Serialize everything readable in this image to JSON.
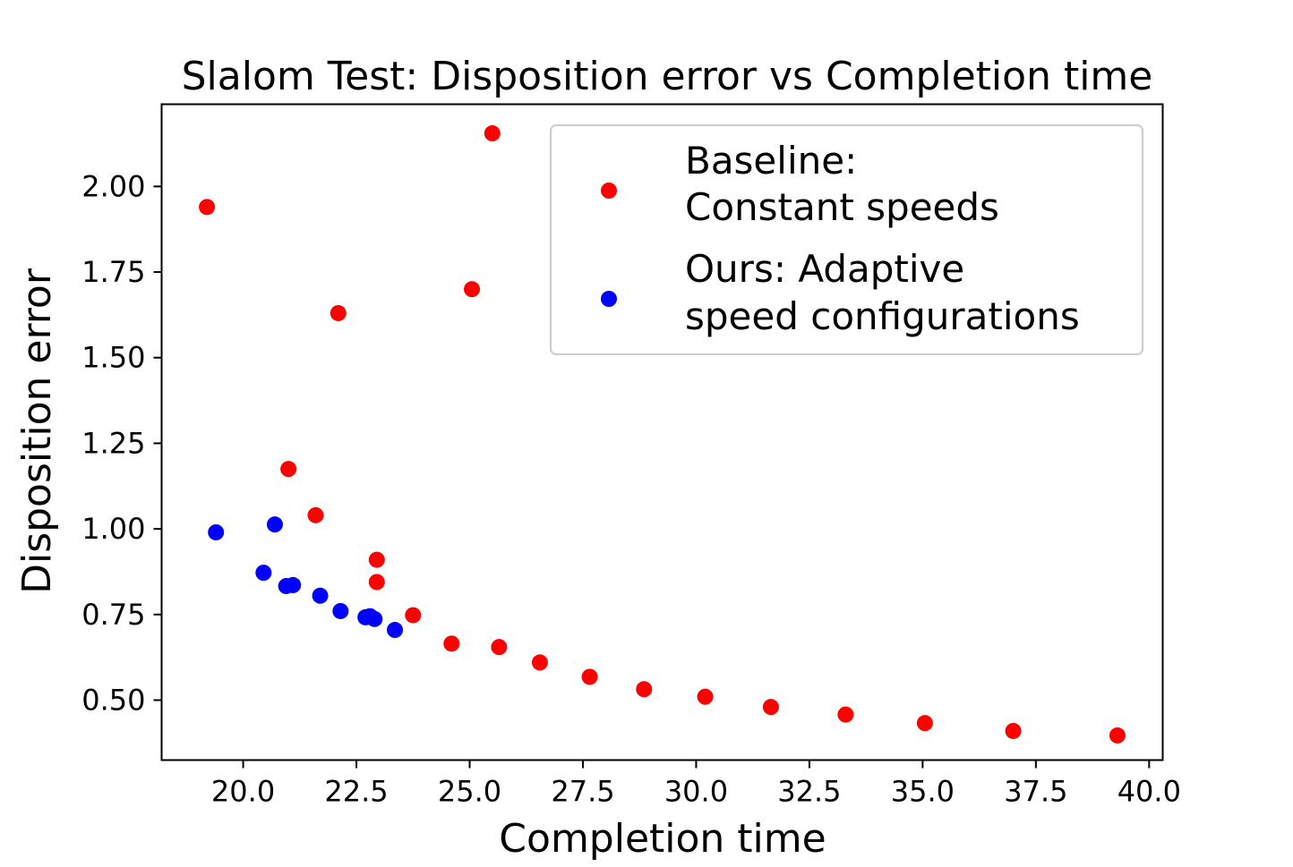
{
  "chart_data": {
    "type": "scatter",
    "title": "Slalom Test: Disposition error vs Completion time",
    "xlabel": "Completion time",
    "ylabel": "Disposition error",
    "xlim": [
      18.2,
      40.3
    ],
    "ylim": [
      0.325,
      2.24
    ],
    "xticks": [
      "20.0",
      "22.5",
      "25.0",
      "27.5",
      "30.0",
      "32.5",
      "35.0",
      "37.5",
      "40.0"
    ],
    "yticks": [
      "0.50",
      "0.75",
      "1.00",
      "1.25",
      "1.50",
      "1.75",
      "2.00"
    ],
    "grid": false,
    "legend_position": "top-right",
    "series": [
      {
        "name_lines": [
          "Baseline:",
          "Constant speeds"
        ],
        "color": "#ff0000",
        "points": [
          {
            "x": 19.2,
            "y": 1.94
          },
          {
            "x": 25.5,
            "y": 2.155
          },
          {
            "x": 25.05,
            "y": 1.7
          },
          {
            "x": 22.1,
            "y": 1.63
          },
          {
            "x": 21.0,
            "y": 1.175
          },
          {
            "x": 21.6,
            "y": 1.04
          },
          {
            "x": 22.95,
            "y": 0.91
          },
          {
            "x": 22.95,
            "y": 0.845
          },
          {
            "x": 23.75,
            "y": 0.748
          },
          {
            "x": 24.6,
            "y": 0.665
          },
          {
            "x": 25.65,
            "y": 0.655
          },
          {
            "x": 26.55,
            "y": 0.61
          },
          {
            "x": 27.65,
            "y": 0.568
          },
          {
            "x": 28.85,
            "y": 0.532
          },
          {
            "x": 30.2,
            "y": 0.51
          },
          {
            "x": 31.65,
            "y": 0.48
          },
          {
            "x": 33.3,
            "y": 0.458
          },
          {
            "x": 35.05,
            "y": 0.433
          },
          {
            "x": 37.0,
            "y": 0.41
          },
          {
            "x": 39.3,
            "y": 0.397
          }
        ]
      },
      {
        "name_lines": [
          "Ours: Adaptive",
          "speed configurations"
        ],
        "color": "#0000ff",
        "points": [
          {
            "x": 19.4,
            "y": 0.99
          },
          {
            "x": 20.7,
            "y": 1.013
          },
          {
            "x": 20.45,
            "y": 0.872
          },
          {
            "x": 20.95,
            "y": 0.833
          },
          {
            "x": 21.1,
            "y": 0.836
          },
          {
            "x": 21.7,
            "y": 0.805
          },
          {
            "x": 22.15,
            "y": 0.76
          },
          {
            "x": 22.7,
            "y": 0.742
          },
          {
            "x": 22.8,
            "y": 0.745
          },
          {
            "x": 22.9,
            "y": 0.737
          },
          {
            "x": 23.35,
            "y": 0.705
          }
        ]
      }
    ]
  }
}
